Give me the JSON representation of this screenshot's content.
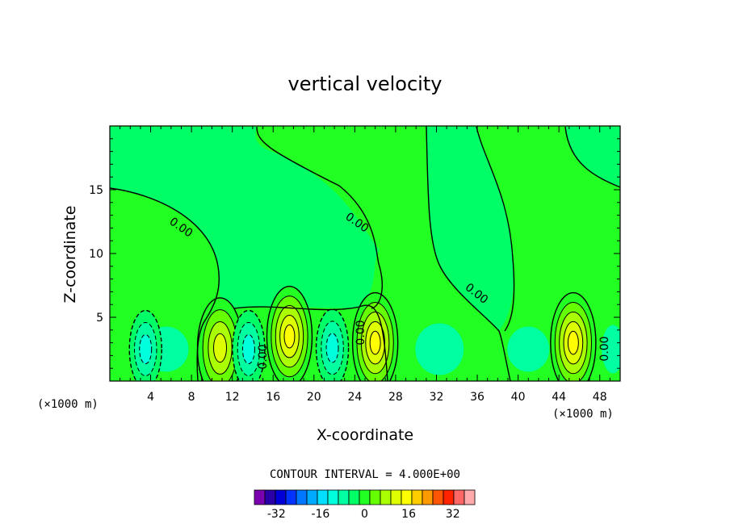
{
  "chart_data": {
    "type": "heatmap",
    "title": "vertical velocity",
    "xlabel": "X-coordinate",
    "ylabel": "Z-coordinate",
    "x_unit_note": "(×1000 m)",
    "xlim": [
      0,
      50
    ],
    "ylim": [
      0,
      20
    ],
    "x_ticks": [
      4,
      8,
      12,
      16,
      20,
      24,
      28,
      32,
      36,
      40,
      44,
      48
    ],
    "y_ticks": [
      5,
      10,
      15
    ],
    "contour_interval_label": "CONTOUR INTERVAL = 4.000E+00",
    "contour_line_label": "0.00",
    "colorbar": {
      "levels": [
        -40,
        -36,
        -32,
        -28,
        -24,
        -20,
        -16,
        -12,
        -8,
        -4,
        0,
        4,
        8,
        12,
        16,
        20,
        24,
        28,
        32,
        36,
        40
      ],
      "colors": [
        "#7a00b0",
        "#2a00a8",
        "#0000d6",
        "#0033ff",
        "#0077ff",
        "#00aaff",
        "#00dfff",
        "#00ffdd",
        "#00ffa0",
        "#00ff66",
        "#22ff22",
        "#66ff00",
        "#aaff00",
        "#ddff00",
        "#ffff00",
        "#ffcc00",
        "#ff9900",
        "#ff5500",
        "#ff2200",
        "#ff6666",
        "#ffaaaa"
      ],
      "tick_labels": [
        "-32",
        "-16",
        "0",
        "16",
        "32"
      ]
    },
    "features": [
      {
        "x": 10.8,
        "z": 2.6,
        "value": 12
      },
      {
        "x": 17.6,
        "z": 3.5,
        "value": 16
      },
      {
        "x": 26.0,
        "z": 3.0,
        "value": 14
      },
      {
        "x": 45.4,
        "z": 3.0,
        "value": 14
      },
      {
        "x": 3.5,
        "z": 2.5,
        "value": -6
      },
      {
        "x": 13.6,
        "z": 2.5,
        "value": -6
      },
      {
        "x": 21.8,
        "z": 2.6,
        "value": -6
      }
    ]
  }
}
